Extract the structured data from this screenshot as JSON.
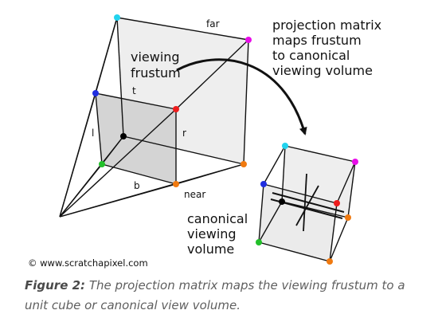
{
  "labels": {
    "far": "far",
    "near": "near",
    "top": "t",
    "bottom": "b",
    "left": "l",
    "right": "r",
    "viewing_frustum": [
      "viewing",
      "frustum"
    ],
    "projection_note": [
      "projection matrix",
      "maps frustum",
      "to canonical",
      "viewing volume"
    ],
    "canonical_volume": [
      "canonical",
      "viewing",
      "volume"
    ]
  },
  "credit": "© www.scratchapixel.com",
  "caption": {
    "figure_number": "Figure 2:",
    "text": " The projection matrix maps the viewing frustum to a unit cube or canonical view volume."
  },
  "colors": {
    "line": "#111111",
    "near_plane_fill": "#d4d4d4",
    "volume_fill": "#eeeeee",
    "cyan": "#22d3ee",
    "magenta": "#e80de8",
    "blue": "#1f2ee0",
    "red": "#ee1c1c",
    "green": "#22c02a",
    "orange": "#f07a10",
    "black": "#000000",
    "caption_text": "#5f5f5f"
  }
}
